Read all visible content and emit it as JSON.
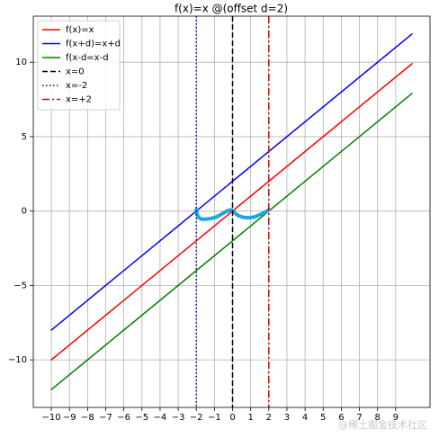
{
  "chart_data": {
    "type": "line",
    "title": "f(x)=x @(offset d=2)",
    "series": [
      {
        "name": "f(x)=x",
        "color": "#ff0000",
        "x": [
          -10,
          9.9
        ],
        "values": [
          -10,
          9.9
        ]
      },
      {
        "name": "f(x+d)=x+d",
        "color": "#0000ff",
        "x": [
          -10,
          9.9
        ],
        "values": [
          -8,
          11.9
        ]
      },
      {
        "name": "f(x-d=x-d",
        "color": "#008000",
        "x": [
          -10,
          9.9
        ],
        "values": [
          -12,
          7.9
        ]
      },
      {
        "color": "#1aa7d9",
        "x": [
          -2,
          -1.95,
          -1.85,
          -1.7,
          -1.5,
          -1.2,
          -0.9,
          -0.6,
          -0.3,
          -0.1,
          0,
          0.1,
          0.3,
          0.6,
          0.9,
          1.2,
          1.5,
          1.75,
          1.9,
          2
        ],
        "values": [
          0.1,
          -0.25,
          -0.45,
          -0.55,
          -0.55,
          -0.5,
          -0.4,
          -0.2,
          0.0,
          0.08,
          0.05,
          -0.1,
          -0.3,
          -0.42,
          -0.45,
          -0.4,
          -0.25,
          -0.1,
          0.0,
          0.1
        ]
      }
    ],
    "vlines": [
      {
        "name": "x=0",
        "color": "#000000",
        "x": 0,
        "style": "dashed"
      },
      {
        "name": "x=-2",
        "color": "#0000bf",
        "x": -2,
        "style": "dotted"
      },
      {
        "name": "x=+2",
        "color": "#dd0000",
        "x": 2,
        "style": "dashdot"
      }
    ],
    "xlim": [
      -10.995,
      10.895
    ],
    "ylim": [
      -13.195,
      13.095
    ],
    "xticks": [
      {
        "value": -10,
        "label": "−10"
      },
      {
        "value": -9,
        "label": "−9"
      },
      {
        "value": -8,
        "label": "−8"
      },
      {
        "value": -7,
        "label": "−7"
      },
      {
        "value": -6,
        "label": "−6"
      },
      {
        "value": -5,
        "label": "−5"
      },
      {
        "value": -4,
        "label": "−4"
      },
      {
        "value": -3,
        "label": "−3"
      },
      {
        "value": -2,
        "label": "−2"
      },
      {
        "value": -1,
        "label": "−1"
      },
      0,
      1,
      2,
      3,
      4,
      5,
      6,
      7,
      8,
      9
    ],
    "yticks": [
      {
        "value": -10,
        "label": "−10"
      },
      {
        "value": -5,
        "label": "−5"
      },
      0,
      5,
      10
    ],
    "grid": true,
    "legend": "upper left",
    "watermark": "@稀土掘金技术社区"
  }
}
